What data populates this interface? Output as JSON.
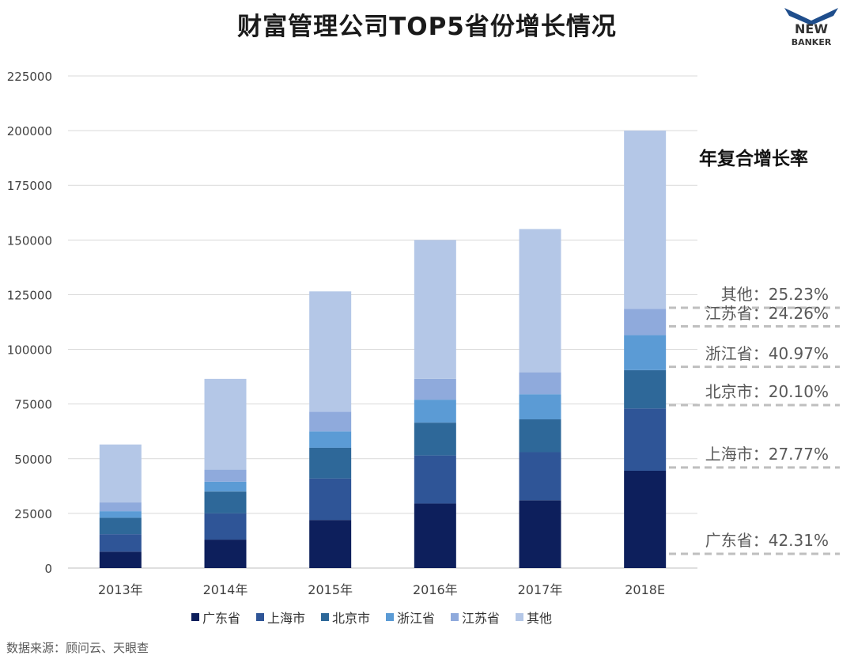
{
  "title": "财富管理公司TOP5省份增长情况",
  "logo": {
    "line1": "NEW",
    "line2": "BANKER"
  },
  "source": "数据来源：顾问云、天眼查",
  "cagr": {
    "title": "年复合增长率",
    "items": [
      {
        "label": "其他：25.23%",
        "value": 119000
      },
      {
        "label": "江苏省：24.26%",
        "value": 110500
      },
      {
        "label": "浙江省：40.97%",
        "value": 92000
      },
      {
        "label": "北京市：20.10%",
        "value": 74500
      },
      {
        "label": "上海市：27.77%",
        "value": 46000
      },
      {
        "label": "广东省：42.31%",
        "value": 6500
      }
    ]
  },
  "chart_data": {
    "type": "bar",
    "stacked": true,
    "categories": [
      "2013年",
      "2014年",
      "2015年",
      "2016年",
      "2017年",
      "2018E"
    ],
    "ylim": [
      0,
      225000
    ],
    "yticks": [
      0,
      25000,
      50000,
      75000,
      100000,
      125000,
      150000,
      175000,
      200000,
      225000
    ],
    "grid": true,
    "legend_position": "bottom",
    "series": [
      {
        "name": "广东省",
        "color": "#0d1f5c",
        "values": [
          7500,
          13000,
          22000,
          29500,
          31000,
          44500
        ]
      },
      {
        "name": "上海市",
        "color": "#2f5597",
        "values": [
          8000,
          12000,
          19000,
          22000,
          22000,
          28500
        ]
      },
      {
        "name": "北京市",
        "color": "#2e6899",
        "values": [
          7500,
          10000,
          14000,
          15000,
          15000,
          17500
        ]
      },
      {
        "name": "浙江省",
        "color": "#5b9bd5",
        "values": [
          3000,
          4500,
          7500,
          10500,
          11500,
          16000
        ]
      },
      {
        "name": "江苏省",
        "color": "#8faadc",
        "values": [
          4000,
          5500,
          9000,
          9500,
          10000,
          12000
        ]
      },
      {
        "name": "其他",
        "color": "#b4c7e7",
        "values": [
          26500,
          41500,
          55000,
          63500,
          65500,
          81500
        ]
      }
    ]
  }
}
